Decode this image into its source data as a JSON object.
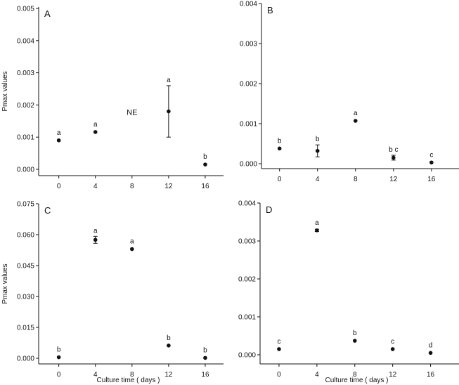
{
  "chart_data": [
    {
      "type": "scatter",
      "panel": "A",
      "ylabel": "Pmax values",
      "xlabel": "",
      "ylim": [
        0,
        0.005
      ],
      "yticks": [
        "0.000",
        "0.001",
        "0.002",
        "0.003",
        "0.004",
        "0.005"
      ],
      "xticks": [
        "0",
        "4",
        "8",
        "12",
        "16"
      ],
      "points": [
        {
          "x": 0,
          "y": 0.0009,
          "err": 3e-05,
          "group": "a"
        },
        {
          "x": 4,
          "y": 0.00116,
          "err": 3e-05,
          "group": "a"
        },
        {
          "x": 12,
          "y": 0.0018,
          "err": 0.0008,
          "group": "a"
        },
        {
          "x": 16,
          "y": 0.00015,
          "err": 3e-05,
          "group": "b"
        }
      ],
      "annotations": [
        {
          "text": "NE",
          "x": 8,
          "y": 0.00178
        }
      ]
    },
    {
      "type": "scatter",
      "panel": "B",
      "ylabel": "",
      "xlabel": "",
      "ylim": [
        0,
        0.004
      ],
      "yticks": [
        "0.000",
        "0.001",
        "0.002",
        "0.003",
        "0.004"
      ],
      "xticks": [
        "0",
        "4",
        "8",
        "12",
        "16"
      ],
      "points": [
        {
          "x": 0,
          "y": 0.00038,
          "err": 2e-05,
          "group": "b"
        },
        {
          "x": 4,
          "y": 0.00032,
          "err": 0.00015,
          "group": "b"
        },
        {
          "x": 8,
          "y": 0.00107,
          "err": 2e-05,
          "group": "a"
        },
        {
          "x": 12,
          "y": 0.00015,
          "err": 6e-05,
          "group": "b c"
        },
        {
          "x": 16,
          "y": 3e-05,
          "err": 1e-05,
          "group": "c"
        }
      ],
      "annotations": []
    },
    {
      "type": "scatter",
      "panel": "C",
      "ylabel": "Pmax values",
      "xlabel": "Culture time ( days )",
      "ylim": [
        0,
        0.075
      ],
      "yticks": [
        "0.000",
        "0.015",
        "0.030",
        "0.045",
        "0.060",
        "0.075"
      ],
      "xticks": [
        "0",
        "4",
        "8",
        "12",
        "16"
      ],
      "points": [
        {
          "x": 0,
          "y": 0.0005,
          "err": 0.0002,
          "group": "b"
        },
        {
          "x": 4,
          "y": 0.0575,
          "err": 0.0017,
          "group": "a"
        },
        {
          "x": 8,
          "y": 0.053,
          "err": 0.0004,
          "group": "a"
        },
        {
          "x": 12,
          "y": 0.0062,
          "err": 0.0003,
          "group": "b"
        },
        {
          "x": 16,
          "y": 0.0002,
          "err": 0.0001,
          "group": "b"
        }
      ],
      "annotations": []
    },
    {
      "type": "scatter",
      "panel": "D",
      "ylabel": "",
      "xlabel": "Culture time ( days )",
      "ylim": [
        0,
        0.004
      ],
      "yticks": [
        "0.000",
        "0.001",
        "0.002",
        "0.003",
        "0.004"
      ],
      "xticks": [
        "0",
        "4",
        "8",
        "12",
        "16"
      ],
      "points": [
        {
          "x": 0,
          "y": 0.00015,
          "err": 2e-05,
          "group": "c"
        },
        {
          "x": 4,
          "y": 0.00328,
          "err": 3e-05,
          "group": "a"
        },
        {
          "x": 8,
          "y": 0.00037,
          "err": 2e-05,
          "group": "b"
        },
        {
          "x": 12,
          "y": 0.00015,
          "err": 2e-05,
          "group": "c"
        },
        {
          "x": 16,
          "y": 5e-05,
          "err": 1e-05,
          "group": "d"
        }
      ],
      "annotations": []
    }
  ]
}
